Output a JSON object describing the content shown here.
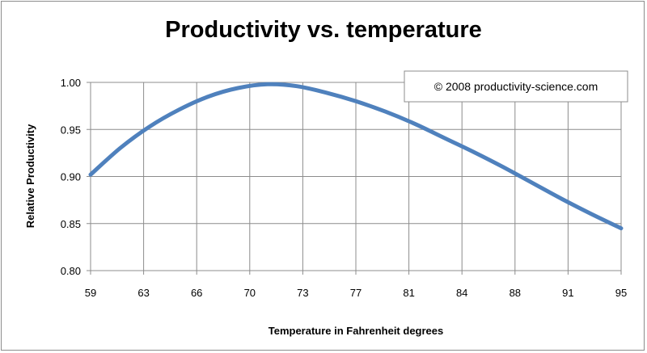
{
  "chart_data": {
    "type": "line",
    "title": "Productivity vs. temperature",
    "xlabel": "Temperature  in Fahrenheit degrees",
    "ylabel": "Relative Productivity",
    "annotation": "© 2008  productivity-science.com",
    "x_tick_labels": [
      "59",
      "63",
      "66",
      "70",
      "73",
      "77",
      "81",
      "84",
      "88",
      "91",
      "95"
    ],
    "y_tick_labels": [
      "1.00",
      "0.95",
      "0.90",
      "0.85",
      "0.80"
    ],
    "y_ticks": [
      1.0,
      0.95,
      0.9,
      0.85,
      0.8
    ],
    "ylim": [
      0.8,
      1.0
    ],
    "xlim": [
      59,
      95
    ],
    "grid": true,
    "series_color": "#4f81bd",
    "x": [
      59,
      61,
      63,
      65,
      67,
      69,
      71,
      73,
      75,
      77,
      79,
      81,
      83,
      85,
      87,
      89,
      91,
      93,
      95
    ],
    "values": [
      0.902,
      0.93,
      0.953,
      0.971,
      0.985,
      0.994,
      0.998,
      0.996,
      0.989,
      0.98,
      0.969,
      0.956,
      0.941,
      0.926,
      0.91,
      0.893,
      0.876,
      0.86,
      0.845
    ]
  }
}
